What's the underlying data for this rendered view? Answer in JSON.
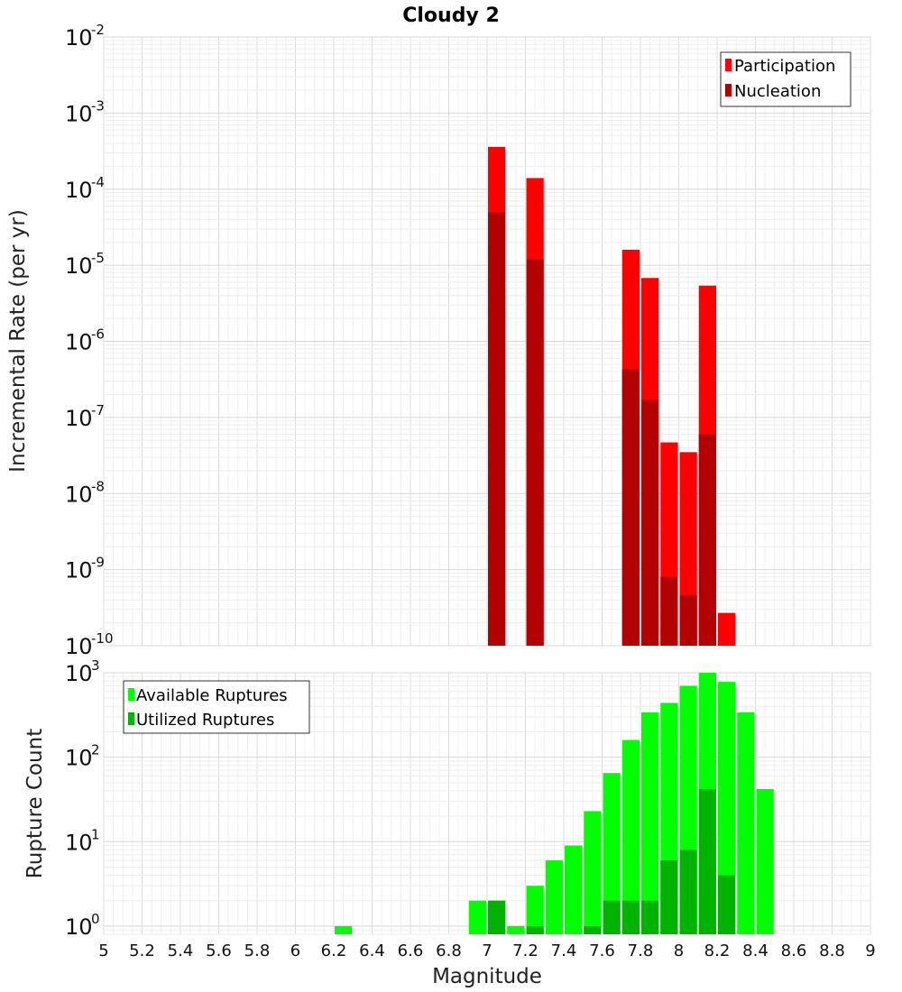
{
  "chart_data": [
    {
      "type": "bar",
      "title": "Cloudy 2",
      "ylabel": "Incremental Rate (per yr)",
      "xlabel": "",
      "y_scale": "log",
      "ylim": [
        1e-10,
        0.01
      ],
      "xlim": [
        5,
        9
      ],
      "bar_width": 0.1,
      "y_tick_exponents": [
        -10,
        -9,
        -8,
        -7,
        -6,
        -5,
        -4,
        -3,
        -2
      ],
      "y_tick_base": "10",
      "legend_position": "top-right",
      "grid": true,
      "x": [
        7.05,
        7.25,
        7.75,
        7.85,
        7.95,
        8.05,
        8.15,
        8.25
      ],
      "series": [
        {
          "name": "Participation",
          "color": "#ff0000",
          "values": [
            0.00036,
            0.00014,
            1.6e-05,
            6.8e-06,
            4.7e-08,
            3.5e-08,
            5.4e-06,
            2.7e-10
          ]
        },
        {
          "name": "Nucleation",
          "color": "#b30000",
          "values": [
            5e-05,
            1.2e-05,
            4.3e-07,
            1.7e-07,
            8e-10,
            4.6e-10,
            6e-08,
            null
          ]
        }
      ]
    },
    {
      "type": "bar",
      "title": "",
      "ylabel": "Rupture Count",
      "xlabel": "Magnitude",
      "y_scale": "log",
      "ylim": [
        0.8,
        1000
      ],
      "xlim": [
        5,
        9
      ],
      "bar_width": 0.1,
      "y_tick_exponents": [
        0,
        1,
        2,
        3
      ],
      "y_tick_base": "10",
      "x_ticks": [
        "5",
        "5.2",
        "5.4",
        "5.6",
        "5.8",
        "6",
        "6.2",
        "6.4",
        "6.6",
        "6.8",
        "7",
        "7.2",
        "7.4",
        "7.6",
        "7.8",
        "8",
        "8.2",
        "8.4",
        "8.6",
        "8.8",
        "9"
      ],
      "legend_position": "top-left",
      "grid": true,
      "x": [
        6.25,
        6.95,
        7.05,
        7.15,
        7.25,
        7.35,
        7.45,
        7.55,
        7.65,
        7.75,
        7.85,
        7.95,
        8.05,
        8.15,
        8.25,
        8.35,
        8.45
      ],
      "series": [
        {
          "name": "Available Ruptures",
          "color": "#00ff00",
          "values": [
            1,
            2,
            2,
            1,
            3,
            6,
            9,
            23,
            65,
            160,
            340,
            440,
            700,
            1000,
            780,
            340,
            42
          ]
        },
        {
          "name": "Utilized Ruptures",
          "color": "#00b300",
          "values": [
            null,
            null,
            2,
            null,
            1,
            null,
            null,
            1,
            2,
            2,
            2,
            6,
            8,
            42,
            4,
            null,
            null
          ]
        }
      ]
    }
  ]
}
